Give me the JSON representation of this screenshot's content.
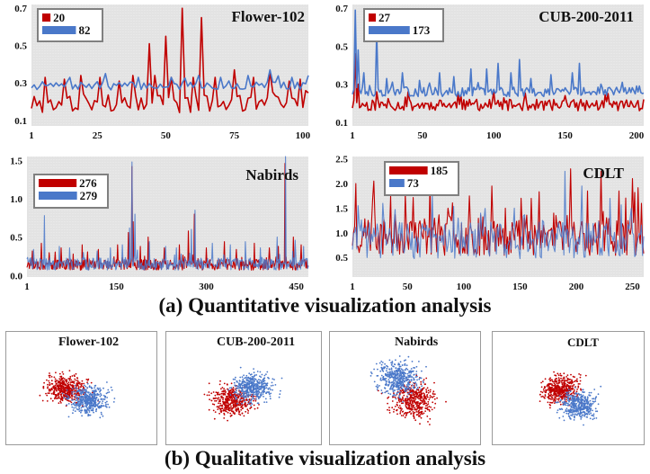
{
  "sections": {
    "quantitative_title": "(a) Quantitative visualization analysis",
    "qualitative_title": "(b) Qualitative visualization analysis"
  },
  "colors": {
    "red": "#c00000",
    "blue": "#4a78c9",
    "grid_bg": "#e3e3e3",
    "legend_border": "#808080"
  },
  "chart_data": [
    {
      "type": "line",
      "title": "Flower-102",
      "xlim": [
        1,
        102
      ],
      "ylim": [
        0.07,
        0.72
      ],
      "xticks": [
        1,
        25,
        50,
        75,
        100
      ],
      "yticks": [
        0.1,
        0.3,
        0.5,
        0.7
      ],
      "legend": [
        {
          "color": "red",
          "value": 20
        },
        {
          "color": "blue",
          "value": 82
        }
      ],
      "series": [
        {
          "name": "red",
          "color": "red",
          "n": 102,
          "base": 0.19,
          "noise": 0.05,
          "seed": 3,
          "spikes": [
            [
              6,
              0.33
            ],
            [
              13,
              0.32
            ],
            [
              19,
              0.34
            ],
            [
              26,
              0.33
            ],
            [
              33,
              0.31
            ],
            [
              38,
              0.34
            ],
            [
              44,
              0.51
            ],
            [
              46,
              0.34
            ],
            [
              50,
              0.55
            ],
            [
              52,
              0.33
            ],
            [
              56,
              0.7
            ],
            [
              60,
              0.33
            ],
            [
              63,
              0.65
            ],
            [
              68,
              0.33
            ],
            [
              75,
              0.37
            ],
            [
              82,
              0.33
            ],
            [
              88,
              0.36
            ],
            [
              95,
              0.31
            ],
            [
              99,
              0.32
            ]
          ]
        },
        {
          "name": "blue",
          "color": "blue",
          "n": 102,
          "base": 0.285,
          "noise": 0.022,
          "seed": 7,
          "spikes": [
            [
              15,
              0.33
            ],
            [
              28,
              0.35
            ],
            [
              40,
              0.33
            ],
            [
              52,
              0.33
            ],
            [
              62,
              0.34
            ],
            [
              70,
              0.33
            ],
            [
              80,
              0.34
            ],
            [
              88,
              0.37
            ],
            [
              96,
              0.33
            ],
            [
              102,
              0.34
            ]
          ]
        }
      ]
    },
    {
      "type": "line",
      "title": "CUB-200-2011",
      "xlim": [
        1,
        205
      ],
      "ylim": [
        0.08,
        0.72
      ],
      "xticks": [
        1,
        50,
        100,
        150,
        200
      ],
      "yticks": [
        0.1,
        0.3,
        0.5,
        0.7
      ],
      "legend": [
        {
          "color": "red",
          "value": 27
        },
        {
          "color": "blue",
          "value": 173
        }
      ],
      "series": [
        {
          "name": "red",
          "color": "red",
          "n": 205,
          "base": 0.19,
          "noise": 0.03,
          "seed": 11,
          "spikes": [
            [
              3,
              0.46
            ],
            [
              5,
              0.3
            ],
            [
              18,
              0.26
            ],
            [
              40,
              0.26
            ],
            [
              75,
              0.25
            ],
            [
              100,
              0.26
            ],
            [
              150,
              0.24
            ],
            [
              180,
              0.25
            ]
          ]
        },
        {
          "name": "blue",
          "color": "blue",
          "n": 205,
          "base": 0.26,
          "noise": 0.025,
          "seed": 13,
          "spikes": [
            [
              3,
              0.69
            ],
            [
              5,
              0.48
            ],
            [
              9,
              0.36
            ],
            [
              18,
              0.57
            ],
            [
              25,
              0.33
            ],
            [
              36,
              0.36
            ],
            [
              48,
              0.32
            ],
            [
              62,
              0.36
            ],
            [
              72,
              0.34
            ],
            [
              84,
              0.38
            ],
            [
              95,
              0.38
            ],
            [
              103,
              0.41
            ],
            [
              112,
              0.36
            ],
            [
              118,
              0.43
            ],
            [
              126,
              0.33
            ],
            [
              140,
              0.35
            ],
            [
              155,
              0.36
            ],
            [
              160,
              0.41
            ],
            [
              175,
              0.3
            ],
            [
              190,
              0.31
            ],
            [
              200,
              0.29
            ]
          ]
        }
      ]
    },
    {
      "type": "line",
      "title": "Nabirds",
      "xlim": [
        1,
        470
      ],
      "ylim": [
        -0.02,
        1.55
      ],
      "xticks": [
        1,
        150,
        300,
        450
      ],
      "yticks": [
        0.0,
        0.5,
        1.0,
        1.5
      ],
      "legend": [
        {
          "color": "red",
          "value": 276
        },
        {
          "color": "blue",
          "value": 279
        }
      ],
      "series": [
        {
          "name": "red",
          "color": "red",
          "n": 470,
          "base": 0.14,
          "noise": 0.07,
          "seed": 17,
          "spikes": [
            [
              10,
              0.32
            ],
            [
              25,
              0.42
            ],
            [
              58,
              0.36
            ],
            [
              78,
              0.28
            ],
            [
              93,
              0.4
            ],
            [
              120,
              0.34
            ],
            [
              152,
              0.4
            ],
            [
              170,
              0.56
            ],
            [
              176,
              1.42
            ],
            [
              178,
              0.7
            ],
            [
              190,
              0.38
            ],
            [
              203,
              0.5
            ],
            [
              230,
              0.36
            ],
            [
              255,
              0.4
            ],
            [
              270,
              0.58
            ],
            [
              280,
              0.8
            ],
            [
              300,
              0.36
            ],
            [
              330,
              0.44
            ],
            [
              350,
              0.34
            ],
            [
              380,
              0.42
            ],
            [
              405,
              0.36
            ],
            [
              420,
              0.38
            ],
            [
              431,
              1.46
            ],
            [
              445,
              0.5
            ],
            [
              458,
              0.4
            ]
          ]
        },
        {
          "name": "blue",
          "color": "blue",
          "n": 470,
          "base": 0.15,
          "noise": 0.08,
          "seed": 19,
          "spikes": [
            [
              12,
              0.34
            ],
            [
              30,
              0.78
            ],
            [
              55,
              0.38
            ],
            [
              72,
              0.36
            ],
            [
              95,
              0.3
            ],
            [
              118,
              0.32
            ],
            [
              140,
              0.36
            ],
            [
              160,
              0.4
            ],
            [
              172,
              0.62
            ],
            [
              176,
              1.48
            ],
            [
              181,
              0.8
            ],
            [
              205,
              0.44
            ],
            [
              232,
              0.38
            ],
            [
              250,
              0.36
            ],
            [
              275,
              0.6
            ],
            [
              281,
              0.85
            ],
            [
              310,
              0.42
            ],
            [
              340,
              0.4
            ],
            [
              365,
              0.44
            ],
            [
              390,
              0.36
            ],
            [
              418,
              0.5
            ],
            [
              432,
              1.55
            ],
            [
              448,
              0.46
            ],
            [
              462,
              0.38
            ]
          ]
        }
      ]
    },
    {
      "type": "line",
      "title": "CDLT",
      "xlim": [
        1,
        260
      ],
      "ylim": [
        0.1,
        2.55
      ],
      "xticks": [
        1,
        50,
        100,
        150,
        200,
        250
      ],
      "yticks": [
        0.5,
        1.0,
        1.5,
        2.0,
        2.5
      ],
      "legend": [
        {
          "color": "red",
          "value": 185
        },
        {
          "color": "blue",
          "value": 73
        }
      ],
      "series": [
        {
          "name": "red",
          "color": "red",
          "n": 260,
          "base": 0.95,
          "noise": 0.42,
          "seed": 23,
          "spikes": [
            [
              4,
              2.0
            ],
            [
              20,
              2.05
            ],
            [
              35,
              1.75
            ],
            [
              48,
              1.8
            ],
            [
              70,
              2.0
            ],
            [
              86,
              1.5
            ],
            [
              105,
              1.75
            ],
            [
              125,
              1.95
            ],
            [
              137,
              1.5
            ],
            [
              160,
              1.7
            ],
            [
              180,
              1.4
            ],
            [
              195,
              2.3
            ],
            [
              210,
              1.85
            ],
            [
              222,
              2.25
            ],
            [
              238,
              1.85
            ],
            [
              250,
              2.1
            ],
            [
              258,
              1.6
            ]
          ]
        },
        {
          "name": "blue",
          "color": "blue",
          "n": 260,
          "base": 0.85,
          "noise": 0.38,
          "seed": 29,
          "spikes": [
            [
              6,
              1.55
            ],
            [
              28,
              1.6
            ],
            [
              45,
              1.2
            ],
            [
              72,
              1.8
            ],
            [
              95,
              1.3
            ],
            [
              115,
              1.4
            ],
            [
              145,
              1.5
            ],
            [
              170,
              1.25
            ],
            [
              190,
              2.25
            ],
            [
              205,
              1.95
            ],
            [
              230,
              1.7
            ],
            [
              248,
              1.3
            ]
          ]
        }
      ]
    }
  ],
  "tsne": [
    {
      "title": "Flower-102",
      "seed": 41,
      "shape": "flower"
    },
    {
      "title": "CUB-200-2011",
      "seed": 43,
      "shape": "cub"
    },
    {
      "title": "Nabirds",
      "seed": 47,
      "shape": "nabirds"
    },
    {
      "title": "CDLT",
      "seed": 53,
      "shape": "cdlt"
    }
  ]
}
